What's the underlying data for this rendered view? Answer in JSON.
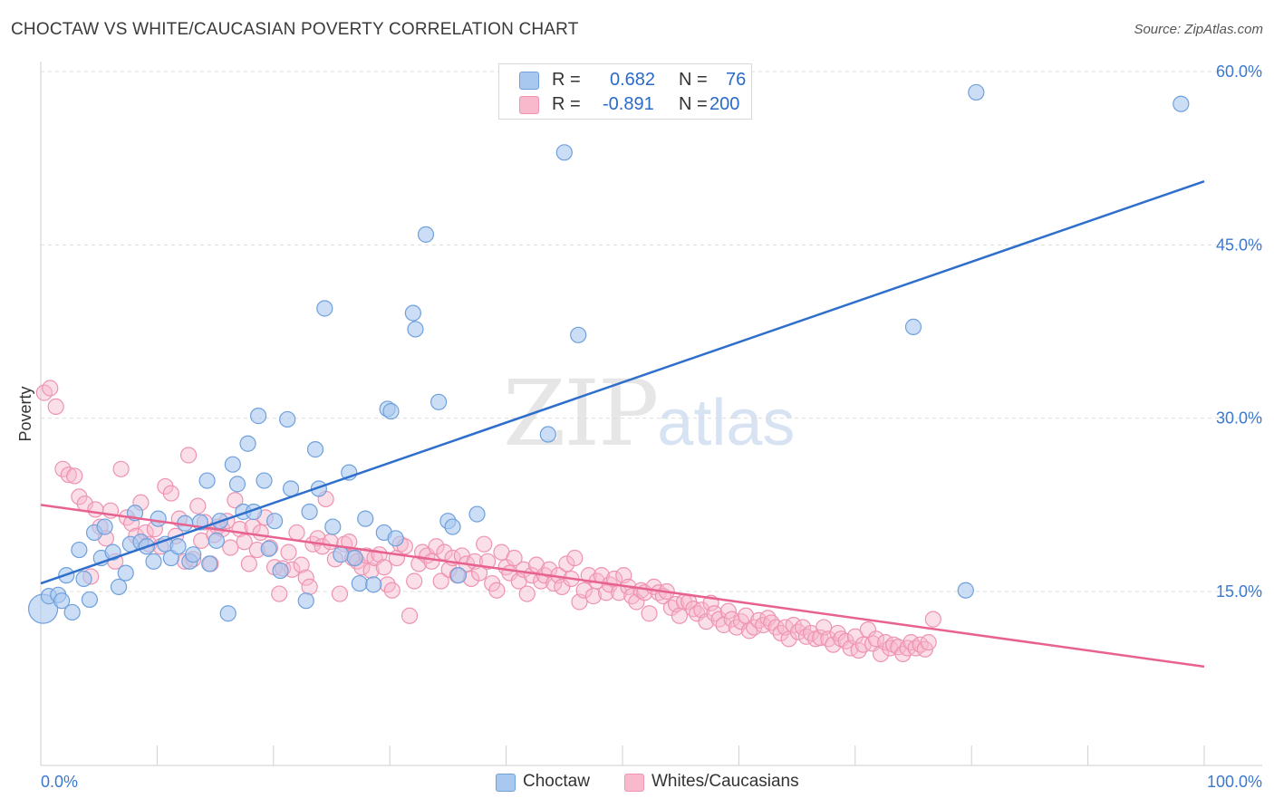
{
  "header": {
    "title": "CHOCTAW VS WHITE/CAUCASIAN POVERTY CORRELATION CHART",
    "source": "Source: ZipAtlas.com"
  },
  "watermark": {
    "zip": "ZIP",
    "atlas": "atlas"
  },
  "legend": {
    "rows": [
      {
        "r_label": "R =",
        "r_value": "0.682",
        "n_label": "N =",
        "n_value": "76",
        "color": "#a9c8f0"
      },
      {
        "r_label": "R =",
        "r_value": "-0.891",
        "n_label": "N =",
        "n_value": "200",
        "color": "#f7b9cb"
      }
    ]
  },
  "bottom_legend": {
    "choctaw": "Choctaw",
    "whites": "Whites/Caucasians"
  },
  "colors": {
    "blue_fill": "#a9c8f0",
    "blue_stroke": "#6fa0dc",
    "blue_line": "#2f6fcc",
    "pink_fill": "#f7b9cb",
    "pink_stroke": "#ee93b0",
    "pink_line": "#e8628f",
    "axis_text": "#3b78d0",
    "grid": "#dddddd"
  },
  "chart_data": {
    "type": "scatter",
    "title": "CHOCTAW VS WHITE/CAUCASIAN POVERTY CORRELATION CHART",
    "xlabel": "",
    "ylabel": "Poverty",
    "xlim": [
      0,
      100
    ],
    "ylim": [
      0,
      62
    ],
    "x_tick_labels": [
      "0.0%",
      "100.0%"
    ],
    "y_ticks": [
      15,
      30,
      45,
      60
    ],
    "y_tick_labels": [
      "15.0%",
      "30.0%",
      "45.0%",
      "60.0%"
    ],
    "grid": "horizontal dashed",
    "legend_placement": "top-center",
    "series": [
      {
        "name": "Choctaw",
        "r": 0.682,
        "n": 76,
        "trend": {
          "x": [
            0,
            100
          ],
          "y": [
            15.7,
            50.5
          ]
        },
        "points": [
          [
            0.2,
            13.5
          ],
          [
            0.7,
            14.6
          ],
          [
            1.5,
            14.7
          ],
          [
            1.8,
            14.2
          ],
          [
            2.2,
            16.4
          ],
          [
            2.7,
            13.2
          ],
          [
            3.3,
            18.6
          ],
          [
            3.7,
            16.1
          ],
          [
            4.2,
            14.3
          ],
          [
            4.6,
            20.1
          ],
          [
            5.2,
            17.9
          ],
          [
            5.5,
            20.6
          ],
          [
            6.2,
            18.4
          ],
          [
            6.7,
            15.4
          ],
          [
            7.3,
            16.6
          ],
          [
            7.7,
            19.1
          ],
          [
            8.1,
            21.8
          ],
          [
            8.6,
            19.3
          ],
          [
            9.1,
            18.9
          ],
          [
            9.7,
            17.6
          ],
          [
            10.1,
            21.3
          ],
          [
            10.7,
            19.1
          ],
          [
            11.2,
            17.9
          ],
          [
            11.8,
            18.9
          ],
          [
            12.4,
            20.9
          ],
          [
            12.8,
            17.6
          ],
          [
            13.1,
            18.2
          ],
          [
            13.7,
            21.0
          ],
          [
            14.3,
            24.6
          ],
          [
            14.5,
            17.4
          ],
          [
            15.1,
            19.4
          ],
          [
            15.4,
            21.1
          ],
          [
            16.1,
            13.1
          ],
          [
            16.5,
            26.0
          ],
          [
            16.9,
            24.3
          ],
          [
            17.4,
            21.9
          ],
          [
            17.8,
            27.8
          ],
          [
            18.3,
            21.9
          ],
          [
            18.7,
            30.2
          ],
          [
            19.2,
            24.6
          ],
          [
            19.6,
            18.7
          ],
          [
            20.1,
            21.1
          ],
          [
            20.6,
            16.8
          ],
          [
            21.2,
            29.9
          ],
          [
            21.5,
            23.9
          ],
          [
            22.8,
            14.2
          ],
          [
            23.1,
            21.9
          ],
          [
            23.6,
            27.3
          ],
          [
            23.9,
            23.9
          ],
          [
            24.4,
            39.5
          ],
          [
            25.1,
            20.6
          ],
          [
            25.8,
            18.2
          ],
          [
            26.5,
            25.3
          ],
          [
            27.0,
            17.9
          ],
          [
            27.4,
            15.7
          ],
          [
            27.9,
            21.3
          ],
          [
            28.6,
            15.6
          ],
          [
            29.5,
            20.1
          ],
          [
            29.8,
            30.8
          ],
          [
            30.1,
            30.6
          ],
          [
            30.5,
            19.6
          ],
          [
            32.0,
            39.1
          ],
          [
            32.2,
            37.7
          ],
          [
            33.1,
            45.9
          ],
          [
            34.2,
            31.4
          ],
          [
            35.0,
            21.1
          ],
          [
            35.4,
            20.6
          ],
          [
            35.9,
            16.4
          ],
          [
            37.5,
            21.7
          ],
          [
            43.6,
            28.6
          ],
          [
            45.0,
            53.0
          ],
          [
            46.2,
            37.2
          ],
          [
            75.0,
            37.9
          ],
          [
            79.5,
            15.1
          ],
          [
            80.4,
            58.2
          ],
          [
            98.0,
            57.2
          ]
        ]
      },
      {
        "name": "Whites/Caucasians",
        "r": -0.891,
        "n": 200,
        "trend": {
          "x": [
            0,
            100
          ],
          "y": [
            22.5,
            8.5
          ]
        },
        "points": [
          [
            0.3,
            32.2
          ],
          [
            0.8,
            32.6
          ],
          [
            1.3,
            31.0
          ],
          [
            1.9,
            25.6
          ],
          [
            2.4,
            25.1
          ],
          [
            2.9,
            25.0
          ],
          [
            3.3,
            23.2
          ],
          [
            3.8,
            22.6
          ],
          [
            4.3,
            16.3
          ],
          [
            4.7,
            22.1
          ],
          [
            5.1,
            20.6
          ],
          [
            5.6,
            19.6
          ],
          [
            6.0,
            22.0
          ],
          [
            6.4,
            17.6
          ],
          [
            6.9,
            25.6
          ],
          [
            7.4,
            21.4
          ],
          [
            7.8,
            20.9
          ],
          [
            8.2,
            19.8
          ],
          [
            8.6,
            22.7
          ],
          [
            9.0,
            20.1
          ],
          [
            9.3,
            19.1
          ],
          [
            9.8,
            20.4
          ],
          [
            10.3,
            18.9
          ],
          [
            10.7,
            24.1
          ],
          [
            11.2,
            23.5
          ],
          [
            11.6,
            19.8
          ],
          [
            11.9,
            21.3
          ],
          [
            12.4,
            17.6
          ],
          [
            12.7,
            26.8
          ],
          [
            13.1,
            17.8
          ],
          [
            13.5,
            22.4
          ],
          [
            13.8,
            19.4
          ],
          [
            14.1,
            21.0
          ],
          [
            14.6,
            17.4
          ],
          [
            14.9,
            19.9
          ],
          [
            15.2,
            20.6
          ],
          [
            15.6,
            20.4
          ],
          [
            16.0,
            21.1
          ],
          [
            16.3,
            18.8
          ],
          [
            16.7,
            22.9
          ],
          [
            17.1,
            20.4
          ],
          [
            17.5,
            19.3
          ],
          [
            17.9,
            17.4
          ],
          [
            18.2,
            20.6
          ],
          [
            18.6,
            18.6
          ],
          [
            18.9,
            20.1
          ],
          [
            19.3,
            21.4
          ],
          [
            19.7,
            18.8
          ],
          [
            20.1,
            17.1
          ],
          [
            20.5,
            14.8
          ],
          [
            20.8,
            17.0
          ],
          [
            21.3,
            18.4
          ],
          [
            21.6,
            16.9
          ],
          [
            22.0,
            20.1
          ],
          [
            22.4,
            17.3
          ],
          [
            22.8,
            16.2
          ],
          [
            23.1,
            15.4
          ],
          [
            23.4,
            19.1
          ],
          [
            23.8,
            19.6
          ],
          [
            24.2,
            18.9
          ],
          [
            24.5,
            23.0
          ],
          [
            24.9,
            19.3
          ],
          [
            25.3,
            17.8
          ],
          [
            25.7,
            14.8
          ],
          [
            26.1,
            19.1
          ],
          [
            26.5,
            19.3
          ],
          [
            26.8,
            17.9
          ],
          [
            27.2,
            17.6
          ],
          [
            27.6,
            17.1
          ],
          [
            28.0,
            18.1
          ],
          [
            28.4,
            16.8
          ],
          [
            28.7,
            17.9
          ],
          [
            29.1,
            18.2
          ],
          [
            29.5,
            17.1
          ],
          [
            29.8,
            15.6
          ],
          [
            30.2,
            15.1
          ],
          [
            30.6,
            17.9
          ],
          [
            30.9,
            19.1
          ],
          [
            31.3,
            18.9
          ],
          [
            31.7,
            12.9
          ],
          [
            32.1,
            15.9
          ],
          [
            32.5,
            17.4
          ],
          [
            32.8,
            18.4
          ],
          [
            33.2,
            18.1
          ],
          [
            33.6,
            17.6
          ],
          [
            34.0,
            18.9
          ],
          [
            34.4,
            15.9
          ],
          [
            34.7,
            18.4
          ],
          [
            35.1,
            16.9
          ],
          [
            35.4,
            17.9
          ],
          [
            35.8,
            16.4
          ],
          [
            36.2,
            18.1
          ],
          [
            36.6,
            17.4
          ],
          [
            37.0,
            16.1
          ],
          [
            37.3,
            17.6
          ],
          [
            37.7,
            16.6
          ],
          [
            38.1,
            19.1
          ],
          [
            38.4,
            17.6
          ],
          [
            38.8,
            15.7
          ],
          [
            39.2,
            15.1
          ],
          [
            39.6,
            18.4
          ],
          [
            40.0,
            17.1
          ],
          [
            40.3,
            16.6
          ],
          [
            40.7,
            17.9
          ],
          [
            41.1,
            15.9
          ],
          [
            41.5,
            16.9
          ],
          [
            41.8,
            14.8
          ],
          [
            42.2,
            16.4
          ],
          [
            42.6,
            17.3
          ],
          [
            43.0,
            15.9
          ],
          [
            43.3,
            16.4
          ],
          [
            43.7,
            16.9
          ],
          [
            44.1,
            15.7
          ],
          [
            44.5,
            16.4
          ],
          [
            44.8,
            15.4
          ],
          [
            45.2,
            17.4
          ],
          [
            45.6,
            16.1
          ],
          [
            45.9,
            17.9
          ],
          [
            46.3,
            14.1
          ],
          [
            46.7,
            15.1
          ],
          [
            47.1,
            16.4
          ],
          [
            47.5,
            14.6
          ],
          [
            47.8,
            15.9
          ],
          [
            48.2,
            16.4
          ],
          [
            48.6,
            14.9
          ],
          [
            48.9,
            15.6
          ],
          [
            49.3,
            16.1
          ],
          [
            49.7,
            14.9
          ],
          [
            50.1,
            16.4
          ],
          [
            50.5,
            15.4
          ],
          [
            50.8,
            14.6
          ],
          [
            51.2,
            14.1
          ],
          [
            51.6,
            15.1
          ],
          [
            51.9,
            14.9
          ],
          [
            52.3,
            13.1
          ],
          [
            52.7,
            15.4
          ],
          [
            53.1,
            14.9
          ],
          [
            53.5,
            14.6
          ],
          [
            53.8,
            15.0
          ],
          [
            54.2,
            13.6
          ],
          [
            54.6,
            13.9
          ],
          [
            54.9,
            12.9
          ],
          [
            55.3,
            14.1
          ],
          [
            55.7,
            14.1
          ],
          [
            56.1,
            13.5
          ],
          [
            56.4,
            13.1
          ],
          [
            56.8,
            13.4
          ],
          [
            57.2,
            12.4
          ],
          [
            57.6,
            14.0
          ],
          [
            57.9,
            13.1
          ],
          [
            58.3,
            12.6
          ],
          [
            58.7,
            12.1
          ],
          [
            59.1,
            13.3
          ],
          [
            59.4,
            12.6
          ],
          [
            59.8,
            11.9
          ],
          [
            60.2,
            12.4
          ],
          [
            60.6,
            12.9
          ],
          [
            60.9,
            11.6
          ],
          [
            61.3,
            11.9
          ],
          [
            61.7,
            12.5
          ],
          [
            62.1,
            12.1
          ],
          [
            62.5,
            12.7
          ],
          [
            62.8,
            12.3
          ],
          [
            63.2,
            11.9
          ],
          [
            63.6,
            11.4
          ],
          [
            64.0,
            11.9
          ],
          [
            64.3,
            10.9
          ],
          [
            64.7,
            12.1
          ],
          [
            65.1,
            11.5
          ],
          [
            65.5,
            11.9
          ],
          [
            65.8,
            11.1
          ],
          [
            66.2,
            11.4
          ],
          [
            66.6,
            10.9
          ],
          [
            67.0,
            11.0
          ],
          [
            67.3,
            11.9
          ],
          [
            67.7,
            10.9
          ],
          [
            68.1,
            10.4
          ],
          [
            68.5,
            11.4
          ],
          [
            68.8,
            10.9
          ],
          [
            69.2,
            10.7
          ],
          [
            69.6,
            10.1
          ],
          [
            70.0,
            11.1
          ],
          [
            70.3,
            9.9
          ],
          [
            70.7,
            10.4
          ],
          [
            71.1,
            11.7
          ],
          [
            71.5,
            10.5
          ],
          [
            71.8,
            10.9
          ],
          [
            72.2,
            9.6
          ],
          [
            72.6,
            10.6
          ],
          [
            73.0,
            10.1
          ],
          [
            73.3,
            10.4
          ],
          [
            73.7,
            10.2
          ],
          [
            74.1,
            9.6
          ],
          [
            74.5,
            10.1
          ],
          [
            74.8,
            10.6
          ],
          [
            75.2,
            10.1
          ],
          [
            75.6,
            10.4
          ],
          [
            76.0,
            10.0
          ],
          [
            76.3,
            10.6
          ],
          [
            76.7,
            12.6
          ]
        ]
      }
    ]
  }
}
